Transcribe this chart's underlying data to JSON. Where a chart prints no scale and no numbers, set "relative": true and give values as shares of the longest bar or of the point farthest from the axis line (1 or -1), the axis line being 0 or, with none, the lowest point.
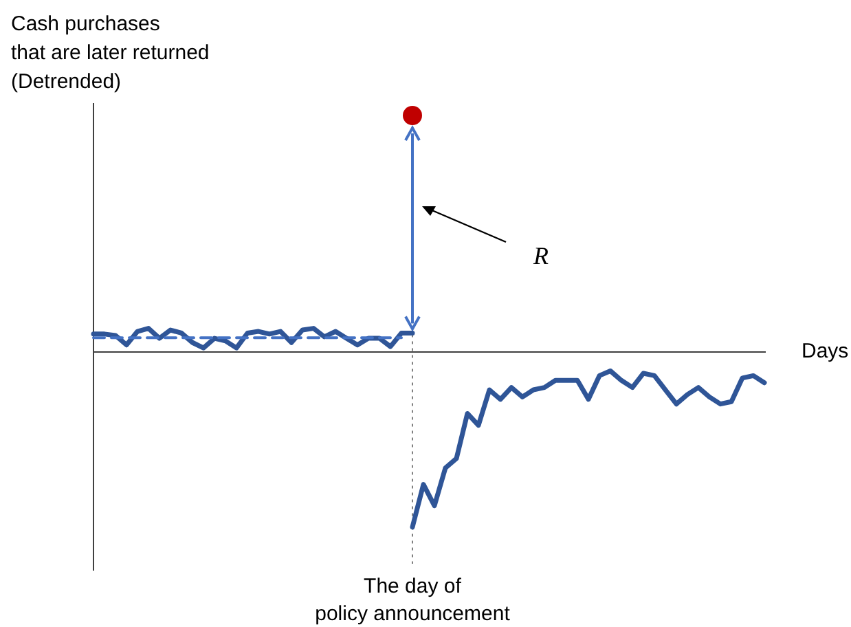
{
  "chart_data": {
    "type": "line",
    "relative": true,
    "ylabel": "Cash purchases\nthat are later returned\n(Detrended)",
    "xlabel": "Days",
    "categories": [
      null,
      null,
      null,
      null,
      null,
      null,
      null,
      null,
      null,
      null,
      null,
      null,
      null,
      null,
      null,
      null,
      null,
      null,
      null,
      null,
      null,
      null,
      null,
      null,
      null,
      null,
      null,
      null,
      null,
      null,
      null,
      null,
      null,
      null,
      null,
      null,
      null,
      null,
      null,
      null,
      null,
      null,
      null,
      null,
      null,
      null,
      null,
      null,
      null,
      null,
      null,
      null,
      null,
      null,
      null,
      null,
      null,
      null,
      null,
      null,
      null,
      null
    ],
    "series": [
      {
        "color": "#2f5597",
        "values": [
          0.076,
          0.076,
          0.07,
          0.03,
          0.087,
          0.1,
          0.058,
          0.093,
          0.08,
          0.04,
          0.017,
          0.058,
          0.047,
          0.017,
          0.08,
          0.087,
          0.076,
          0.087,
          0.04,
          0.093,
          0.1,
          0.064,
          0.087,
          0.058,
          0.03,
          0.058,
          0.058,
          0.023,
          0.08,
          0.08,
          null,
          null,
          null,
          null,
          null,
          null,
          null,
          null,
          null,
          null,
          null,
          null,
          null,
          null,
          null,
          null,
          null,
          null,
          null,
          null,
          null,
          null,
          null,
          null,
          null,
          null,
          null,
          null,
          null,
          null,
          null,
          null
        ]
      },
      {
        "color": "#2f5597",
        "values": [
          null,
          null,
          null,
          null,
          null,
          null,
          null,
          null,
          null,
          null,
          null,
          null,
          null,
          null,
          null,
          null,
          null,
          null,
          null,
          null,
          null,
          null,
          null,
          null,
          null,
          null,
          null,
          null,
          null,
          -0.74,
          -0.56,
          -0.65,
          -0.49,
          -0.45,
          -0.26,
          -0.31,
          -0.16,
          -0.2,
          -0.15,
          -0.19,
          -0.16,
          -0.15,
          -0.12,
          -0.12,
          -0.12,
          -0.2,
          -0.1,
          -0.08,
          -0.12,
          -0.15,
          -0.09,
          -0.1,
          -0.16,
          -0.22,
          -0.18,
          -0.15,
          -0.19,
          -0.22,
          -0.21,
          -0.11,
          -0.1,
          -0.13
        ]
      },
      {
        "color": "#4472c4",
        "line_style": "dashed",
        "values": [
          0.06,
          0.06,
          0.06,
          0.06,
          0.06,
          0.06,
          0.06,
          0.06,
          0.06,
          0.06,
          0.06,
          0.06,
          0.06,
          0.06,
          0.06,
          0.06,
          0.06,
          0.06,
          0.06,
          0.06,
          0.06,
          0.06,
          0.06,
          0.06,
          0.06,
          0.06,
          0.06,
          0.06,
          0.06,
          null,
          null,
          null,
          null,
          null,
          null,
          null,
          null,
          null,
          null,
          null,
          null,
          null,
          null,
          null,
          null,
          null,
          null,
          null,
          null,
          null,
          null,
          null,
          null,
          null,
          null,
          null,
          null,
          null,
          null,
          null,
          null,
          null
        ]
      },
      {
        "color": "#c00000",
        "marker": "circle",
        "values": [
          null,
          null,
          null,
          null,
          null,
          null,
          null,
          null,
          null,
          null,
          null,
          null,
          null,
          null,
          null,
          null,
          null,
          null,
          null,
          null,
          null,
          null,
          null,
          null,
          null,
          null,
          null,
          null,
          null,
          1,
          null,
          null,
          null,
          null,
          null,
          null,
          null,
          null,
          null,
          null,
          null,
          null,
          null,
          null,
          null,
          null,
          null,
          null,
          null,
          null,
          null,
          null,
          null,
          null,
          null,
          null,
          null,
          null,
          null,
          null,
          null,
          null
        ]
      }
    ],
    "annotations": [
      "R",
      "The day of policy announcement"
    ]
  }
}
